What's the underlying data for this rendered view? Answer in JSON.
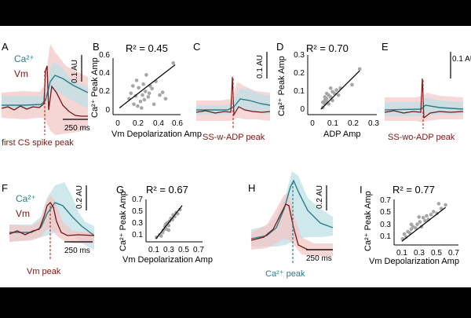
{
  "colors": {
    "background": "#000000",
    "panel": "#ffffff",
    "ca": "#2a7d88",
    "ca_band": "#bfe0e6",
    "vm": "#7a1414",
    "vm_band": "#f3c7c7",
    "marker": "#c0392b",
    "scatter_point": "#a6a6a6",
    "fit_line": "#000000"
  },
  "chart_data": [
    {
      "id": "A",
      "type": "line",
      "legend": [
        {
          "name": "Ca²⁺",
          "color": "ca"
        },
        {
          "name": "Vm",
          "color": "vm"
        }
      ],
      "scale_y": "0.1 AU",
      "scale_x": "250 ms",
      "marker_label": "first CS spike peak"
    },
    {
      "id": "B",
      "type": "scatter",
      "annotation": "R² = 0.45",
      "xlabel": "Vm Depolarization Amp",
      "ylabel": "Ca²⁺ Peak Amp",
      "xticks": [
        "0",
        "0.2",
        "0.4",
        "0.6"
      ],
      "yticks": [
        "0",
        "0.2",
        "0.4",
        "0.6"
      ],
      "xlim": [
        -0.05,
        0.62
      ],
      "ylim": [
        -0.03,
        0.62
      ],
      "fit": [
        [
          0.0,
          0.06
        ],
        [
          0.58,
          0.53
        ]
      ],
      "points": [
        [
          0.1,
          0.16
        ],
        [
          0.12,
          0.22
        ],
        [
          0.15,
          0.1
        ],
        [
          0.17,
          0.19
        ],
        [
          0.18,
          0.36
        ],
        [
          0.2,
          0.28
        ],
        [
          0.22,
          0.13
        ],
        [
          0.24,
          0.2
        ],
        [
          0.25,
          0.32
        ],
        [
          0.27,
          0.24
        ],
        [
          0.28,
          0.42
        ],
        [
          0.3,
          0.18
        ],
        [
          0.32,
          0.3
        ],
        [
          0.34,
          0.27
        ],
        [
          0.36,
          0.1
        ],
        [
          0.38,
          0.35
        ],
        [
          0.42,
          0.2
        ],
        [
          0.45,
          0.23
        ],
        [
          0.48,
          0.16
        ],
        [
          0.56,
          0.55
        ],
        [
          0.14,
          0.3
        ],
        [
          0.23,
          0.06
        ],
        [
          0.19,
          0.08
        ],
        [
          0.26,
          0.15
        ],
        [
          0.31,
          0.22
        ]
      ]
    },
    {
      "id": "C",
      "type": "line",
      "scale_y": "0.1 AU",
      "scale_x": "",
      "marker_label": "SS-w-ADP peak"
    },
    {
      "id": "D",
      "type": "scatter",
      "annotation": "R² = 0.70",
      "xlabel": "ADP Amp",
      "ylabel": "Ca²⁺ Peak Amp",
      "xticks": [
        "0",
        "0.1",
        "0.2",
        "0.3"
      ],
      "yticks": [
        "0",
        "0.1",
        "0.2",
        "0.3"
      ],
      "xlim": [
        -0.02,
        0.32
      ],
      "ylim": [
        -0.02,
        0.33
      ],
      "fit": [
        [
          0.04,
          0.02
        ],
        [
          0.24,
          0.24
        ]
      ],
      "points": [
        [
          0.05,
          0.03
        ],
        [
          0.06,
          0.07
        ],
        [
          0.06,
          0.05
        ],
        [
          0.07,
          0.08
        ],
        [
          0.07,
          0.06
        ],
        [
          0.08,
          0.1
        ],
        [
          0.08,
          0.05
        ],
        [
          0.09,
          0.09
        ],
        [
          0.1,
          0.12
        ],
        [
          0.1,
          0.07
        ],
        [
          0.11,
          0.11
        ],
        [
          0.12,
          0.13
        ],
        [
          0.13,
          0.1
        ],
        [
          0.14,
          0.14
        ],
        [
          0.06,
          0.09
        ],
        [
          0.05,
          0.06
        ],
        [
          0.07,
          0.11
        ],
        [
          0.09,
          0.14
        ],
        [
          0.2,
          0.16
        ],
        [
          0.24,
          0.25
        ]
      ]
    },
    {
      "id": "E",
      "type": "line",
      "scale_y": "0.1 AU",
      "scale_x": "",
      "marker_label": "SS-wo-ADP peak"
    },
    {
      "id": "F",
      "type": "line",
      "legend": [
        {
          "name": "Ca²⁺",
          "color": "ca"
        },
        {
          "name": "Vm",
          "color": "vm"
        }
      ],
      "scale_y": "0.2 AU",
      "scale_x": "250 ms",
      "marker_label": "Vm peak"
    },
    {
      "id": "G",
      "type": "scatter",
      "annotation": "R² = 0.67",
      "xlabel": "Vm Depolarization Amp",
      "ylabel": "Ca²⁺ Peak Amp",
      "xticks": [
        "0.1",
        "0.3",
        "0.5",
        "0.7"
      ],
      "yticks": [
        "0.1",
        "0.3",
        "0.5",
        "0.7"
      ],
      "xlim": [
        0.0,
        0.75
      ],
      "ylim": [
        0.0,
        0.75
      ],
      "fit": [
        [
          0.13,
          0.05
        ],
        [
          0.48,
          0.62
        ]
      ],
      "points": [
        [
          0.14,
          0.08
        ],
        [
          0.18,
          0.12
        ],
        [
          0.2,
          0.1
        ],
        [
          0.22,
          0.16
        ],
        [
          0.23,
          0.2
        ],
        [
          0.25,
          0.26
        ],
        [
          0.27,
          0.22
        ],
        [
          0.28,
          0.32
        ],
        [
          0.3,
          0.28
        ],
        [
          0.31,
          0.35
        ],
        [
          0.33,
          0.4
        ],
        [
          0.35,
          0.38
        ],
        [
          0.36,
          0.46
        ],
        [
          0.38,
          0.43
        ],
        [
          0.4,
          0.5
        ],
        [
          0.42,
          0.48
        ],
        [
          0.26,
          0.3
        ],
        [
          0.3,
          0.2
        ],
        [
          0.45,
          0.55
        ]
      ]
    },
    {
      "id": "H",
      "type": "line",
      "scale_y": "0.2 AU",
      "scale_x": "250 ms",
      "marker_label": "Ca²⁺ peak"
    },
    {
      "id": "I",
      "type": "scatter",
      "annotation": "R² = 0.77",
      "xlabel": "Vm Depolarization Amp",
      "ylabel": "Ca²⁺ Peak Amp",
      "xticks": [
        "0.1",
        "0.3",
        "0.5",
        "0.7"
      ],
      "yticks": [
        "0.1",
        "0.3",
        "0.5",
        "0.7"
      ],
      "xlim": [
        0.0,
        0.75
      ],
      "ylim": [
        0.0,
        0.75
      ],
      "fit": [
        [
          0.09,
          0.06
        ],
        [
          0.6,
          0.62
        ]
      ],
      "points": [
        [
          0.1,
          0.1
        ],
        [
          0.12,
          0.18
        ],
        [
          0.14,
          0.13
        ],
        [
          0.16,
          0.22
        ],
        [
          0.18,
          0.2
        ],
        [
          0.2,
          0.26
        ],
        [
          0.22,
          0.3
        ],
        [
          0.25,
          0.28
        ],
        [
          0.27,
          0.34
        ],
        [
          0.3,
          0.38
        ],
        [
          0.32,
          0.3
        ],
        [
          0.34,
          0.45
        ],
        [
          0.36,
          0.4
        ],
        [
          0.38,
          0.48
        ],
        [
          0.4,
          0.42
        ],
        [
          0.43,
          0.5
        ],
        [
          0.46,
          0.55
        ],
        [
          0.5,
          0.52
        ],
        [
          0.55,
          0.6
        ],
        [
          0.6,
          0.66
        ],
        [
          0.2,
          0.34
        ],
        [
          0.29,
          0.46
        ],
        [
          0.52,
          0.68
        ]
      ]
    }
  ]
}
